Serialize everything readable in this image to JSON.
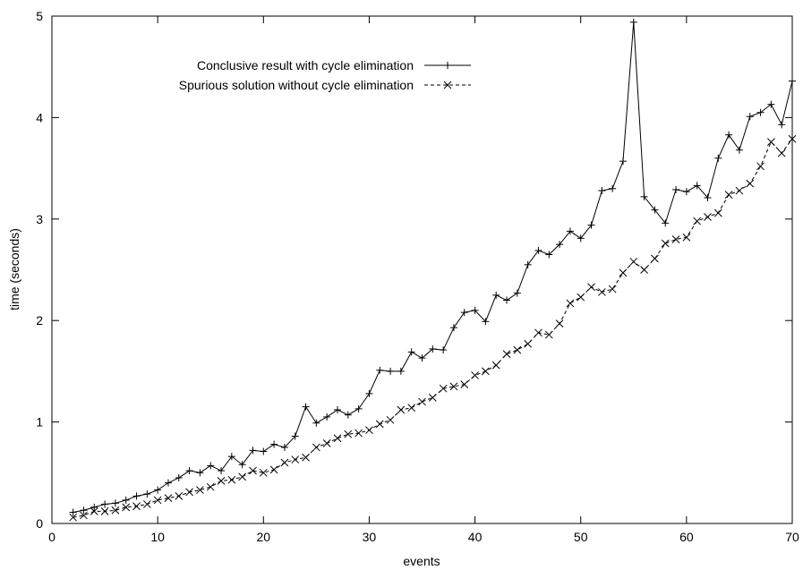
{
  "chart_data": {
    "type": "line",
    "title": "",
    "xlabel": "events",
    "ylabel": "time (seconds)",
    "xlim": [
      0,
      70
    ],
    "ylim": [
      0,
      5
    ],
    "xticks": [
      0,
      10,
      20,
      30,
      40,
      50,
      60,
      70
    ],
    "yticks": [
      0,
      1,
      2,
      3,
      4,
      5
    ],
    "grid": false,
    "legend_position": "top-left",
    "x": [
      2,
      3,
      4,
      5,
      6,
      7,
      8,
      9,
      10,
      11,
      12,
      13,
      14,
      15,
      16,
      17,
      18,
      19,
      20,
      21,
      22,
      23,
      24,
      25,
      26,
      27,
      28,
      29,
      30,
      31,
      32,
      33,
      34,
      35,
      36,
      37,
      38,
      39,
      40,
      41,
      42,
      43,
      44,
      45,
      46,
      47,
      48,
      49,
      50,
      51,
      52,
      53,
      54,
      55,
      56,
      57,
      58,
      59,
      60,
      61,
      62,
      63,
      64,
      65,
      66,
      67,
      68,
      69,
      70
    ],
    "series": [
      {
        "name": "Conclusive result with cycle elimination",
        "marker": "plus",
        "dash": "solid",
        "values": [
          0.11,
          0.13,
          0.16,
          0.19,
          0.2,
          0.23,
          0.27,
          0.29,
          0.33,
          0.4,
          0.45,
          0.52,
          0.5,
          0.57,
          0.52,
          0.66,
          0.58,
          0.72,
          0.71,
          0.78,
          0.75,
          0.86,
          1.15,
          0.99,
          1.05,
          1.12,
          1.07,
          1.13,
          1.28,
          1.51,
          1.5,
          1.5,
          1.69,
          1.63,
          1.72,
          1.71,
          1.93,
          2.08,
          2.1,
          1.99,
          2.25,
          2.2,
          2.27,
          2.55,
          2.69,
          2.65,
          2.75,
          2.88,
          2.81,
          2.94,
          3.28,
          3.3,
          3.57,
          4.94,
          3.22,
          3.09,
          2.96,
          3.29,
          3.27,
          3.33,
          3.21,
          3.6,
          3.83,
          3.68,
          4.01,
          4.05,
          4.13,
          3.93,
          4.36
        ]
      },
      {
        "name": "Spurious solution without cycle elimination",
        "marker": "cross",
        "dash": "dashed",
        "values": [
          0.06,
          0.08,
          0.12,
          0.12,
          0.13,
          0.16,
          0.17,
          0.19,
          0.23,
          0.25,
          0.27,
          0.31,
          0.33,
          0.36,
          0.42,
          0.43,
          0.46,
          0.52,
          0.5,
          0.53,
          0.6,
          0.63,
          0.65,
          0.75,
          0.79,
          0.84,
          0.88,
          0.89,
          0.92,
          0.98,
          1.02,
          1.12,
          1.14,
          1.2,
          1.24,
          1.33,
          1.35,
          1.37,
          1.46,
          1.5,
          1.56,
          1.67,
          1.71,
          1.77,
          1.88,
          1.86,
          1.97,
          2.17,
          2.23,
          2.33,
          2.28,
          2.31,
          2.47,
          2.58,
          2.5,
          2.61,
          2.76,
          2.8,
          2.82,
          2.98,
          3.02,
          3.06,
          3.24,
          3.28,
          3.35,
          3.52,
          3.76,
          3.65,
          3.79
        ]
      }
    ]
  }
}
